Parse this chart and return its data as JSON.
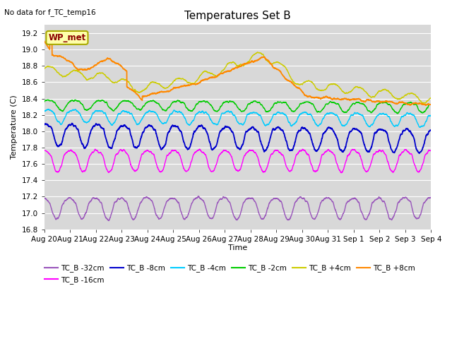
{
  "title": "Temperatures Set B",
  "subtitle": "No data for f_TC_temp16",
  "ylabel": "Temperature (C)",
  "xlabel": "Time",
  "wp_met_label": "WP_met",
  "ylim": [
    16.8,
    19.3
  ],
  "series_colors": {
    "TC_B -32cm": "#9955bb",
    "TC_B -16cm": "#ff00ff",
    "TC_B -8cm": "#0000cc",
    "TC_B -4cm": "#00ccff",
    "TC_B -2cm": "#00cc00",
    "TC_B +4cm": "#cccc00",
    "TC_B +8cm": "#ff8800"
  },
  "xtick_labels": [
    "Aug 20",
    "Aug 21",
    "Aug 22",
    "Aug 23",
    "Aug 24",
    "Aug 25",
    "Aug 26",
    "Aug 27",
    "Aug 28",
    "Aug 29",
    "Aug 30",
    "Aug 31",
    "Sep 1",
    "Sep 2",
    "Sep 3",
    "Sep 4"
  ],
  "n_points": 3600,
  "grid_color": "white",
  "bg_color": "#d8d8d8"
}
